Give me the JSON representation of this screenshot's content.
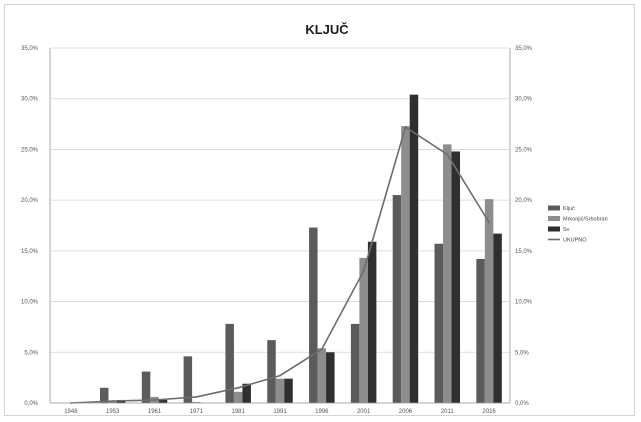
{
  "chart_data": {
    "type": "bar",
    "title": "KLJUČ",
    "categories": [
      "1948",
      "1953",
      "1961",
      "1971",
      "1981",
      "1991",
      "1996",
      "2001",
      "2006",
      "2011",
      "2016"
    ],
    "series": [
      {
        "name": "Ključ",
        "type": "bar",
        "color": "#5b5b5b",
        "values": [
          0.0,
          1.5,
          3.1,
          4.6,
          7.8,
          6.2,
          17.3,
          7.8,
          20.5,
          15.7,
          14.2
        ]
      },
      {
        "name": "Mrkonjić/Srbobran",
        "type": "bar",
        "color": "#8d8d8d",
        "values": [
          0.0,
          0.2,
          0.6,
          0.1,
          1.1,
          2.4,
          5.4,
          14.3,
          27.3,
          25.5,
          20.1
        ]
      },
      {
        "name": "Sv",
        "type": "bar",
        "color": "#2f2f2f",
        "values": [
          0.0,
          0.3,
          0.3,
          0.0,
          1.9,
          2.4,
          5.0,
          15.9,
          30.4,
          24.8,
          16.7
        ]
      },
      {
        "name": "UKUPNO",
        "type": "line",
        "color": "#6d6d6d",
        "values": [
          0.0,
          0.2,
          0.3,
          0.6,
          1.5,
          2.7,
          5.3,
          13.0,
          27.2,
          24.5,
          17.8
        ]
      }
    ],
    "y_left": {
      "ticks": [
        "0,0%",
        "5,0%",
        "10,0%",
        "15,0%",
        "20,0%",
        "25,0%",
        "30,0%",
        "35,0%"
      ],
      "ylim": [
        0,
        35
      ]
    },
    "y_right": {
      "ticks": [
        "0,0%",
        "5,0%",
        "10,0%",
        "15,0%",
        "20,0%",
        "25,0%",
        "30,0%",
        "35,0%"
      ],
      "ylim": [
        0,
        35
      ]
    },
    "grid": true,
    "legend_position": "right"
  }
}
